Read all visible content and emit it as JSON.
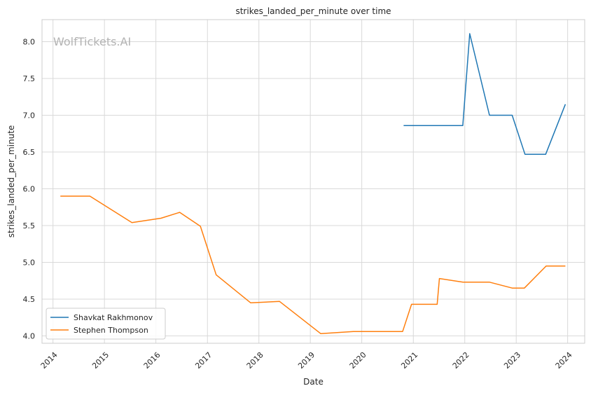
{
  "chart_data": {
    "type": "line",
    "title": "strikes_landed_per_minute over time",
    "xlabel": "Date",
    "ylabel": "strikes_landed_per_minute",
    "watermark": "WolfTickets.AI",
    "xlim": [
      "2013-10-15",
      "2024-05-01"
    ],
    "ylim": [
      3.9,
      8.3
    ],
    "x_ticks": [
      "2014-01-01",
      "2015-01-01",
      "2016-01-01",
      "2017-01-01",
      "2018-01-01",
      "2019-01-01",
      "2020-01-01",
      "2021-01-01",
      "2022-01-01",
      "2023-01-01",
      "2024-01-01"
    ],
    "x_tick_labels": [
      "2014",
      "2015",
      "2016",
      "2017",
      "2018",
      "2019",
      "2020",
      "2021",
      "2022",
      "2023",
      "2024"
    ],
    "y_ticks": [
      4.0,
      4.5,
      5.0,
      5.5,
      6.0,
      6.5,
      7.0,
      7.5,
      8.0
    ],
    "y_tick_labels": [
      "4.0",
      "4.5",
      "5.0",
      "5.5",
      "6.0",
      "6.5",
      "7.0",
      "7.5",
      "8.0"
    ],
    "grid": true,
    "legend_position": "lower-left",
    "series": [
      {
        "name": "Shavkat Rakhmonov",
        "color": "#1f77b4",
        "points": [
          [
            "2020-10-24",
            6.86
          ],
          [
            "2021-12-18",
            6.86
          ],
          [
            "2022-02-05",
            8.11
          ],
          [
            "2022-06-25",
            7.0
          ],
          [
            "2022-12-03",
            7.0
          ],
          [
            "2023-03-04",
            6.47
          ],
          [
            "2023-07-29",
            6.47
          ],
          [
            "2023-12-16",
            7.15
          ]
        ]
      },
      {
        "name": "Stephen Thompson",
        "color": "#ff7f0e",
        "points": [
          [
            "2014-02-22",
            5.9
          ],
          [
            "2014-09-20",
            5.9
          ],
          [
            "2015-07-15",
            5.54
          ],
          [
            "2016-02-06",
            5.6
          ],
          [
            "2016-06-18",
            5.68
          ],
          [
            "2016-11-12",
            5.49
          ],
          [
            "2017-03-04",
            4.83
          ],
          [
            "2017-11-04",
            4.45
          ],
          [
            "2018-05-27",
            4.47
          ],
          [
            "2019-03-16",
            4.03
          ],
          [
            "2019-11-02",
            4.06
          ],
          [
            "2020-10-17",
            4.06
          ],
          [
            "2020-12-19",
            4.43
          ],
          [
            "2021-06-19",
            4.43
          ],
          [
            "2021-07-05",
            4.78
          ],
          [
            "2021-12-19",
            4.73
          ],
          [
            "2022-06-26",
            4.73
          ],
          [
            "2022-12-03",
            4.65
          ],
          [
            "2023-02-28",
            4.65
          ],
          [
            "2023-08-01",
            4.95
          ],
          [
            "2023-12-16",
            4.95
          ]
        ]
      }
    ]
  }
}
